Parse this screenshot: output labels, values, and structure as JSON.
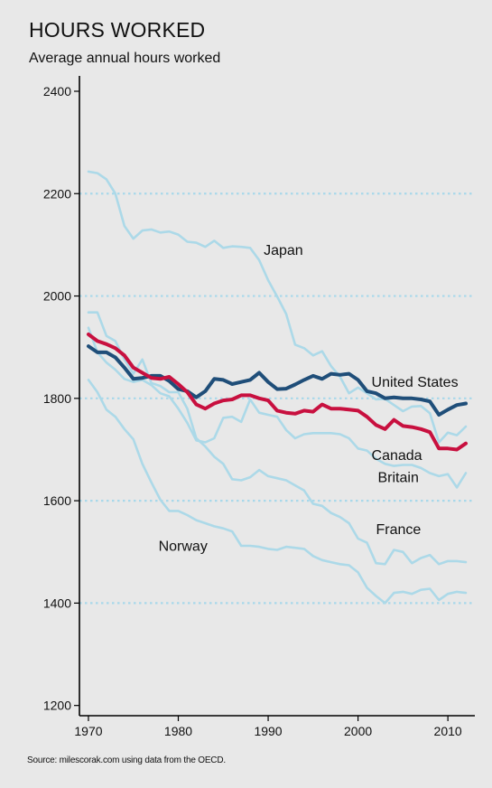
{
  "title": "HOURS WORKED",
  "subtitle": "Average annual hours worked",
  "source": "Source: milescorak.com using data from the OECD.",
  "chart_data": {
    "type": "line",
    "xlim": [
      1969,
      2013
    ],
    "ylim": [
      1180,
      2430
    ],
    "x_ticks": [
      "1970",
      "1980",
      "1990",
      "2000",
      "2010"
    ],
    "y_ticks": [
      "1200",
      "1400",
      "1600",
      "1800",
      "2000",
      "2200",
      "2400"
    ],
    "gridlines": [
      1400,
      1600,
      1800,
      2000,
      2200
    ],
    "colors": {
      "background": "#e8e8e8",
      "grid": "#a8d8ea",
      "faded": "#acd9e8",
      "us": "#1f4e79",
      "canada": "#c8103f"
    },
    "series": [
      {
        "name": "Japan",
        "label_x": 1989.5,
        "label_y": 2080,
        "emphasis": false,
        "x": [
          1970,
          1971,
          1972,
          1973,
          1974,
          1975,
          1976,
          1977,
          1978,
          1979,
          1980,
          1981,
          1982,
          1983,
          1984,
          1985,
          1986,
          1987,
          1988,
          1989,
          1990,
          1991,
          1992,
          1993,
          1994,
          1995,
          1996,
          1997,
          1998,
          1999,
          2000,
          2001,
          2002,
          2003,
          2004,
          2005,
          2006,
          2007,
          2008,
          2009,
          2010,
          2011,
          2012
        ],
        "y": [
          2243,
          2240,
          2228,
          2200,
          2137,
          2112,
          2128,
          2130,
          2124,
          2126,
          2120,
          2106,
          2104,
          2096,
          2108,
          2094,
          2097,
          2096,
          2094,
          2070,
          2031,
          1999,
          1965,
          1905,
          1898,
          1884,
          1892,
          1863,
          1842,
          1810,
          1821,
          1810,
          1798,
          1799,
          1787,
          1775,
          1784,
          1785,
          1771,
          1714,
          1733,
          1728,
          1745
        ]
      },
      {
        "name": "United States",
        "label_x": 2001.5,
        "label_y": 1823,
        "emphasis": true,
        "color": "#1f4e79",
        "x": [
          1970,
          1971,
          1972,
          1973,
          1974,
          1975,
          1976,
          1977,
          1978,
          1979,
          1980,
          1981,
          1982,
          1983,
          1984,
          1985,
          1986,
          1987,
          1988,
          1989,
          1990,
          1991,
          1992,
          1993,
          1994,
          1995,
          1996,
          1997,
          1998,
          1999,
          2000,
          2001,
          2002,
          2003,
          2004,
          2005,
          2006,
          2007,
          2008,
          2009,
          2010,
          2011,
          2012
        ],
        "y": [
          1902,
          1890,
          1890,
          1880,
          1860,
          1838,
          1840,
          1844,
          1844,
          1834,
          1818,
          1814,
          1802,
          1814,
          1838,
          1836,
          1828,
          1832,
          1836,
          1850,
          1832,
          1818,
          1819,
          1827,
          1836,
          1844,
          1838,
          1848,
          1846,
          1848,
          1836,
          1814,
          1810,
          1800,
          1802,
          1800,
          1800,
          1798,
          1794,
          1768,
          1778,
          1787,
          1790
        ]
      },
      {
        "name": "Canada",
        "label_x": 2001.5,
        "label_y": 1680,
        "emphasis": true,
        "color": "#c8103f",
        "x": [
          1970,
          1971,
          1972,
          1973,
          1974,
          1975,
          1976,
          1977,
          1978,
          1979,
          1980,
          1981,
          1982,
          1983,
          1984,
          1985,
          1986,
          1987,
          1988,
          1989,
          1990,
          1991,
          1992,
          1993,
          1994,
          1995,
          1996,
          1997,
          1998,
          1999,
          2000,
          2001,
          2002,
          2003,
          2004,
          2005,
          2006,
          2007,
          2008,
          2009,
          2010,
          2011,
          2012
        ],
        "y": [
          1925,
          1912,
          1906,
          1898,
          1884,
          1860,
          1850,
          1840,
          1838,
          1842,
          1828,
          1812,
          1788,
          1780,
          1790,
          1796,
          1798,
          1806,
          1806,
          1800,
          1796,
          1776,
          1772,
          1770,
          1776,
          1774,
          1788,
          1780,
          1780,
          1778,
          1776,
          1764,
          1748,
          1740,
          1758,
          1746,
          1744,
          1740,
          1734,
          1702,
          1702,
          1700,
          1712
        ]
      },
      {
        "name": "Britain",
        "label_x": 2002.2,
        "label_y": 1636,
        "emphasis": false,
        "x": [
          1970,
          1971,
          1972,
          1973,
          1974,
          1975,
          1976,
          1977,
          1978,
          1979,
          1980,
          1981,
          1982,
          1983,
          1984,
          1985,
          1986,
          1987,
          1988,
          1989,
          1990,
          1991,
          1992,
          1993,
          1994,
          1995,
          1996,
          1997,
          1998,
          1999,
          2000,
          2001,
          2002,
          2003,
          2004,
          2005,
          2006,
          2007,
          2008,
          2009,
          2010,
          2011,
          2012
        ],
        "y": [
          1938,
          1890,
          1870,
          1856,
          1838,
          1832,
          1836,
          1826,
          1810,
          1804,
          1780,
          1752,
          1718,
          1714,
          1722,
          1762,
          1764,
          1754,
          1798,
          1772,
          1768,
          1764,
          1738,
          1722,
          1730,
          1732,
          1732,
          1732,
          1730,
          1722,
          1702,
          1698,
          1682,
          1672,
          1668,
          1670,
          1670,
          1664,
          1654,
          1648,
          1652,
          1626,
          1654
        ]
      },
      {
        "name": "France",
        "label_x": 2002,
        "label_y": 1535,
        "emphasis": false,
        "x": [
          1970,
          1971,
          1972,
          1973,
          1974,
          1975,
          1976,
          1977,
          1978,
          1979,
          1980,
          1981,
          1982,
          1983,
          1984,
          1985,
          1986,
          1987,
          1988,
          1989,
          1990,
          1991,
          1992,
          1993,
          1994,
          1995,
          1996,
          1997,
          1998,
          1999,
          2000,
          2001,
          2002,
          2003,
          2004,
          2005,
          2006,
          2007,
          2008,
          2009,
          2010,
          2011,
          2012
        ],
        "y": [
          1968,
          1968,
          1922,
          1912,
          1876,
          1848,
          1876,
          1830,
          1824,
          1812,
          1812,
          1780,
          1722,
          1706,
          1686,
          1672,
          1642,
          1640,
          1646,
          1660,
          1648,
          1644,
          1640,
          1630,
          1620,
          1594,
          1590,
          1576,
          1568,
          1556,
          1526,
          1518,
          1478,
          1476,
          1504,
          1500,
          1478,
          1488,
          1494,
          1476,
          1482,
          1482,
          1480
        ]
      },
      {
        "name": "Norway",
        "label_x": 1977.8,
        "label_y": 1502,
        "emphasis": false,
        "x": [
          1970,
          1971,
          1972,
          1973,
          1974,
          1975,
          1976,
          1977,
          1978,
          1979,
          1980,
          1981,
          1982,
          1983,
          1984,
          1985,
          1986,
          1987,
          1988,
          1989,
          1990,
          1991,
          1992,
          1993,
          1994,
          1995,
          1996,
          1997,
          1998,
          1999,
          2000,
          2001,
          2002,
          2003,
          2004,
          2005,
          2006,
          2007,
          2008,
          2009,
          2010,
          2011,
          2012
        ],
        "y": [
          1836,
          1812,
          1778,
          1764,
          1740,
          1720,
          1672,
          1636,
          1602,
          1580,
          1580,
          1572,
          1562,
          1556,
          1550,
          1546,
          1540,
          1512,
          1512,
          1510,
          1506,
          1504,
          1510,
          1508,
          1506,
          1492,
          1484,
          1480,
          1476,
          1474,
          1460,
          1430,
          1414,
          1400,
          1420,
          1422,
          1418,
          1426,
          1428,
          1406,
          1418,
          1422,
          1420
        ]
      }
    ]
  }
}
